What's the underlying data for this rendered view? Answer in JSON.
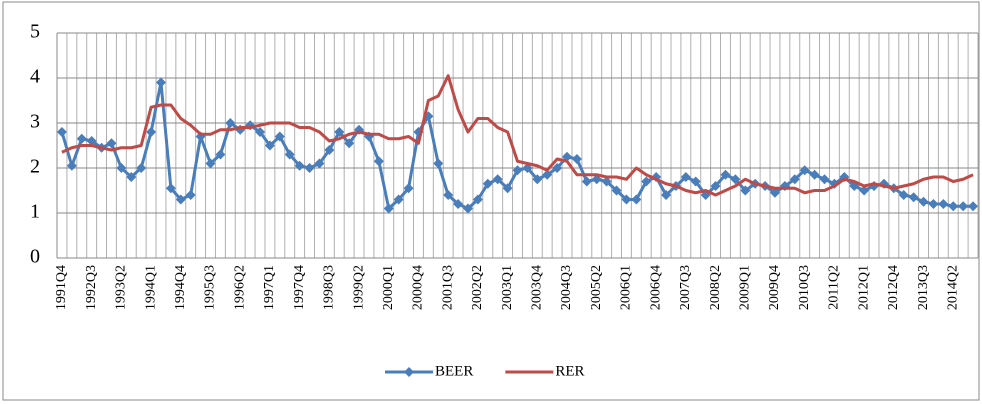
{
  "chart_data": {
    "type": "line",
    "categories": [
      "1991Q4",
      null,
      null,
      "1992Q3",
      null,
      null,
      "1993Q2",
      null,
      null,
      "1994Q1",
      null,
      null,
      "1994Q4",
      null,
      null,
      "1995Q3",
      null,
      null,
      "1996Q2",
      null,
      null,
      "1997Q1",
      null,
      null,
      "1997Q4",
      null,
      null,
      "1998Q3",
      null,
      null,
      "1999Q2",
      null,
      null,
      "2000Q1",
      null,
      null,
      "2000Q4",
      null,
      null,
      "2001Q3",
      null,
      null,
      "2002Q2",
      null,
      null,
      "2003Q1",
      null,
      null,
      "2003Q4",
      null,
      null,
      "2004Q3",
      null,
      null,
      "2005Q2",
      null,
      null,
      "2006Q1",
      null,
      null,
      "2006Q4",
      null,
      null,
      "2007Q3",
      null,
      null,
      "2008Q2",
      null,
      null,
      "2009Q1",
      null,
      null,
      "2009Q4",
      null,
      null,
      "2010Q3",
      null,
      null,
      "2011Q2",
      null,
      null,
      "2012Q1",
      null,
      null,
      "2012Q4",
      null,
      null,
      "2013Q3",
      null,
      null,
      "2014Q2",
      null,
      null
    ],
    "series": [
      {
        "name": "BEER",
        "color": "#4a7ebb",
        "marker": "diamond",
        "values": [
          2.8,
          2.05,
          2.65,
          2.6,
          2.45,
          2.55,
          2.0,
          1.8,
          2.0,
          2.8,
          3.9,
          1.55,
          1.3,
          1.4,
          2.7,
          2.1,
          2.3,
          3.0,
          2.85,
          2.95,
          2.8,
          2.5,
          2.7,
          2.3,
          2.05,
          2.0,
          2.1,
          2.4,
          2.8,
          2.55,
          2.85,
          2.7,
          2.15,
          1.1,
          1.3,
          1.55,
          2.8,
          3.15,
          2.1,
          1.4,
          1.2,
          1.1,
          1.3,
          1.65,
          1.75,
          1.55,
          1.95,
          2.0,
          1.75,
          1.85,
          2.0,
          2.25,
          2.2,
          1.7,
          1.75,
          1.7,
          1.5,
          1.3,
          1.3,
          1.7,
          1.8,
          1.4,
          1.6,
          1.8,
          1.7,
          1.4,
          1.6,
          1.85,
          1.75,
          1.5,
          1.65,
          1.6,
          1.45,
          1.6,
          1.75,
          1.95,
          1.85,
          1.75,
          1.65,
          1.8,
          1.6,
          1.5,
          1.6,
          1.65,
          1.55,
          1.4,
          1.35,
          1.25,
          1.2,
          1.2,
          1.15,
          1.15,
          1.15
        ]
      },
      {
        "name": "RER",
        "color": "#be4b48",
        "values": [
          2.35,
          2.45,
          2.5,
          2.5,
          2.45,
          2.4,
          2.45,
          2.45,
          2.5,
          3.35,
          3.4,
          3.4,
          3.1,
          2.95,
          2.75,
          2.75,
          2.85,
          2.85,
          2.9,
          2.9,
          2.95,
          3.0,
          3.0,
          3.0,
          2.9,
          2.9,
          2.8,
          2.6,
          2.65,
          2.75,
          2.8,
          2.75,
          2.75,
          2.65,
          2.65,
          2.7,
          2.55,
          3.5,
          3.6,
          4.05,
          3.3,
          2.8,
          3.1,
          3.1,
          2.9,
          2.8,
          2.15,
          2.1,
          2.05,
          1.95,
          2.2,
          2.15,
          1.85,
          1.85,
          1.85,
          1.8,
          1.8,
          1.75,
          2.0,
          1.85,
          1.75,
          1.65,
          1.6,
          1.5,
          1.45,
          1.5,
          1.4,
          1.5,
          1.6,
          1.75,
          1.65,
          1.6,
          1.55,
          1.55,
          1.55,
          1.45,
          1.5,
          1.5,
          1.6,
          1.75,
          1.7,
          1.6,
          1.65,
          1.6,
          1.55,
          1.6,
          1.65,
          1.75,
          1.8,
          1.8,
          1.7,
          1.75,
          1.85
        ]
      }
    ],
    "ylim": [
      0,
      5
    ],
    "yticks": [
      0,
      1,
      2,
      3,
      4,
      5
    ],
    "grid": true,
    "legend": "bottom"
  }
}
